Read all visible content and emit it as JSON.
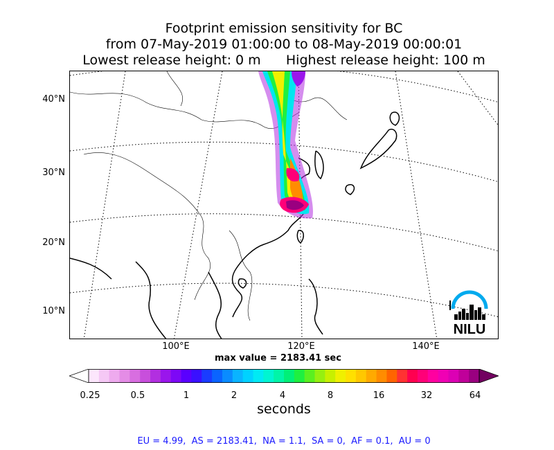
{
  "title": {
    "line1": "Footprint emission sensitivity for BC",
    "line2": "from 07-May-2019 01:00:00 to 08-May-2019 00:00:01",
    "line3": "Lowest release height: 0 m      Highest release height: 100 m"
  },
  "map": {
    "lat_labels": [
      "40°N",
      "30°N",
      "20°N",
      "10°N"
    ],
    "lon_labels": [
      "100°E",
      "120°E",
      "140°E"
    ],
    "logo_text": "NILU",
    "coastline_color": "#000000",
    "border_color": "#000000"
  },
  "max_value_text": "max value = 2183.41 sec",
  "colorbar": {
    "ticks": [
      "0.25",
      "0.5",
      "1",
      "2",
      "4",
      "8",
      "16",
      "32",
      "64"
    ],
    "unit": "seconds",
    "colors": [
      "#ffffff",
      "#fce6fc",
      "#f5c8f5",
      "#eeaaee",
      "#e48ce6",
      "#d86ee0",
      "#c84fdc",
      "#b22fe0",
      "#9a16ec",
      "#7d08f6",
      "#5a00ff",
      "#3a10ff",
      "#1a3cff",
      "#0a64ff",
      "#0a8cff",
      "#0ab4ff",
      "#00d2ff",
      "#00eaf4",
      "#00f5d2",
      "#00f5a8",
      "#00f078",
      "#1ef040",
      "#5af020",
      "#96f010",
      "#c8f000",
      "#f0f000",
      "#ffe000",
      "#ffc800",
      "#ffaa00",
      "#ff8c00",
      "#ff6400",
      "#ff3232",
      "#ff0050",
      "#ff0078",
      "#ff00a0",
      "#f000b4",
      "#dc00b4",
      "#c0009a",
      "#9a0080",
      "#720060"
    ]
  },
  "summary": "EU = 4.99,  AS = 2183.41,  NA = 1.1,  SA = 0,  AF = 0.1,  AU = 0",
  "chart_data": {
    "type": "heatmap",
    "title": "Footprint emission sensitivity for BC",
    "subtitle": "from 07-May-2019 01:00:00 to 08-May-2019 00:00:01",
    "colorbar_label": "seconds",
    "colorbar_scale": "log",
    "colorbar_ticks": [
      0.25,
      0.5,
      1,
      2,
      4,
      8,
      16,
      32,
      64
    ],
    "max_value_sec": 2183.41,
    "lat_ticks": [
      40,
      30,
      20,
      10
    ],
    "lon_ticks": [
      100,
      120,
      140
    ],
    "regional_totals": {
      "EU": 4.99,
      "AS": 2183.41,
      "NA": 1.1,
      "SA": 0,
      "AF": 0.1,
      "AU": 0
    }
  }
}
